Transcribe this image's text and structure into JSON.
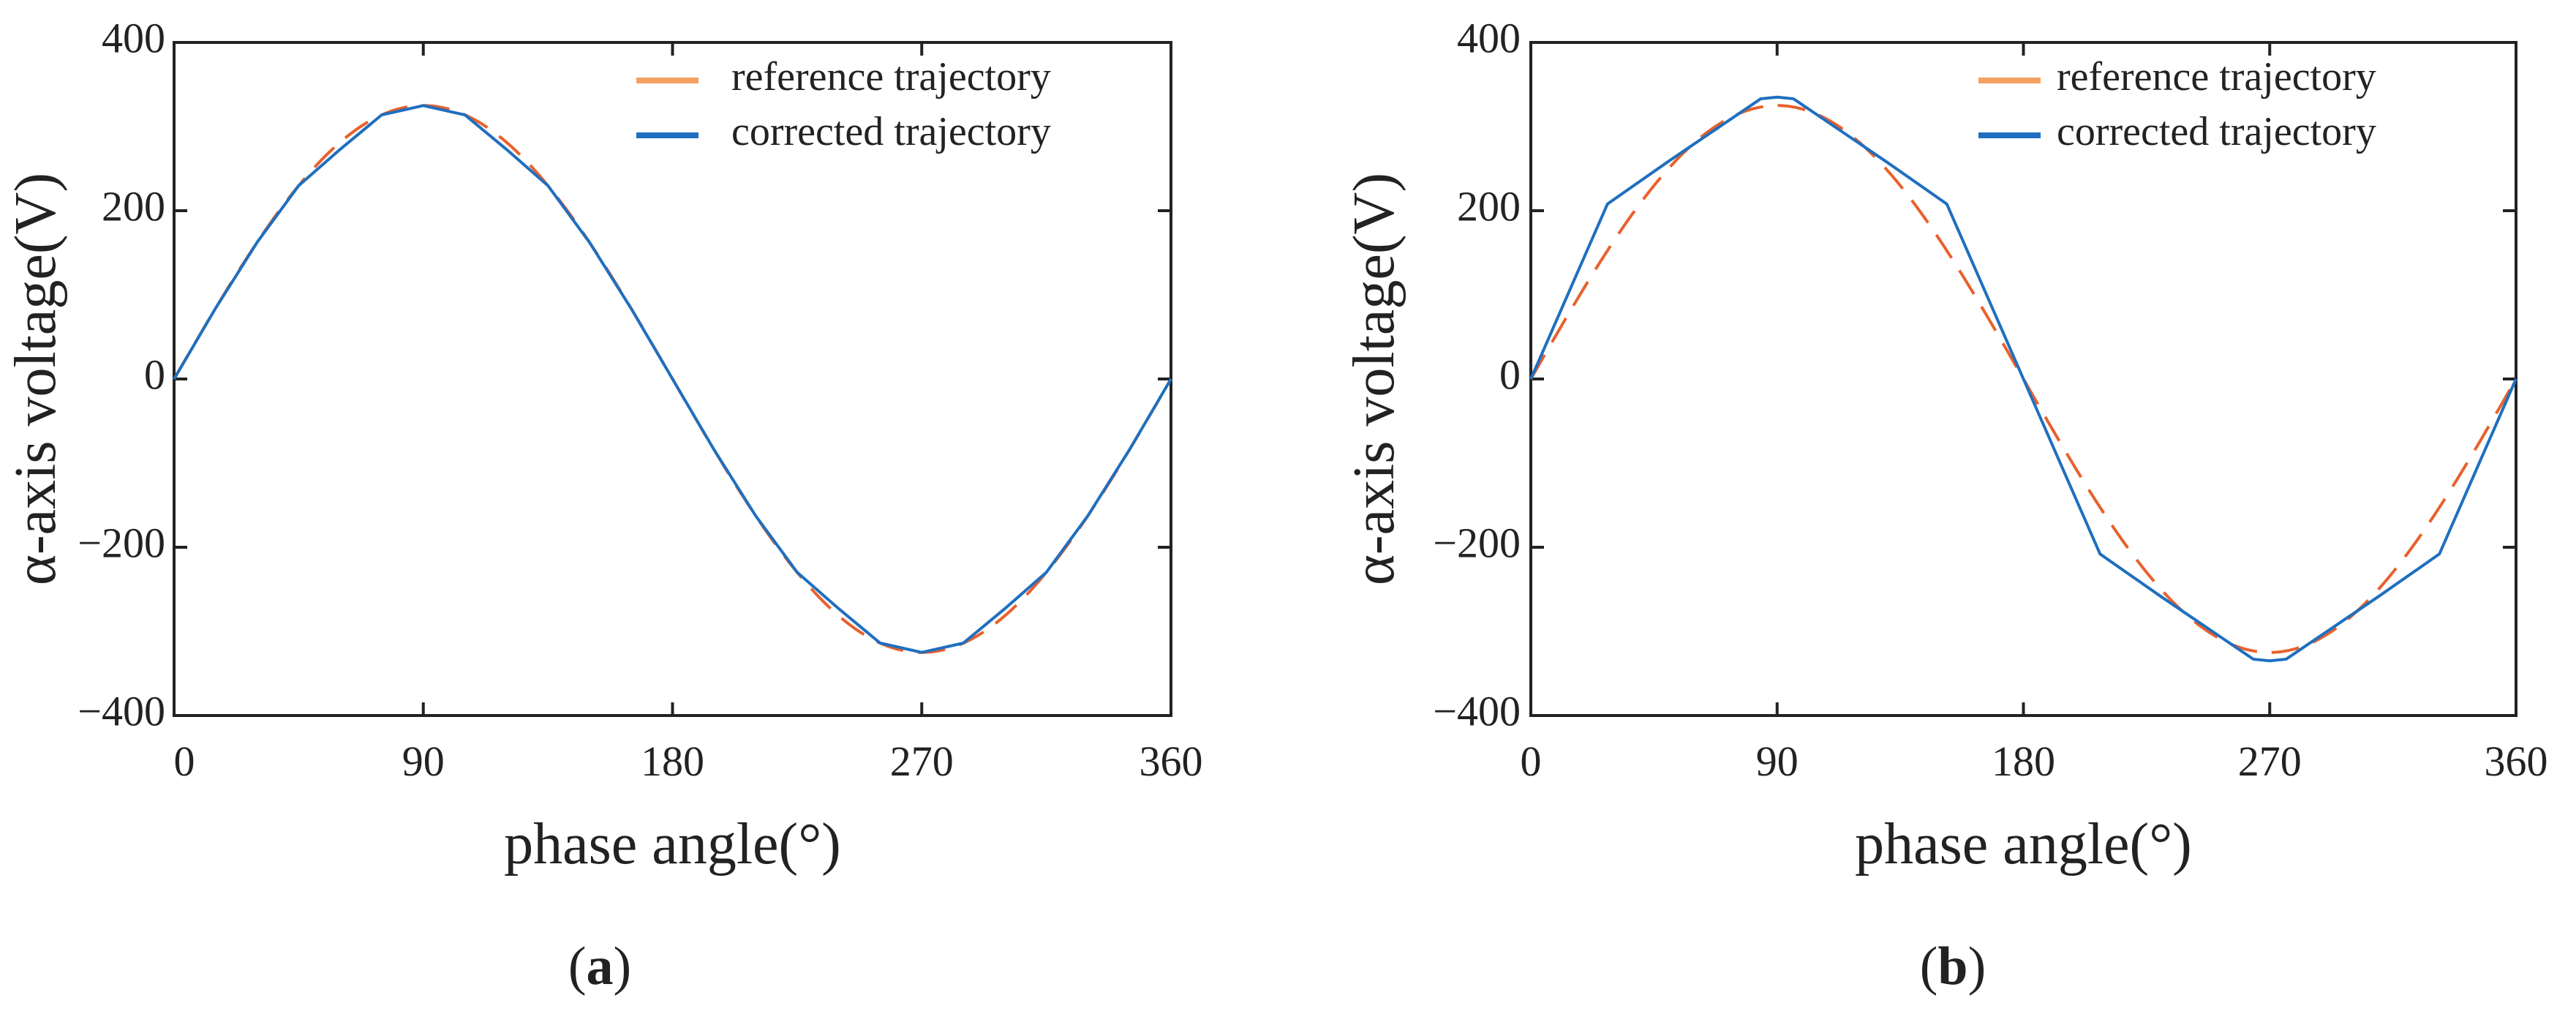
{
  "colors": {
    "reference": "#E8612C",
    "reference_legend": "#F4A060",
    "corrected": "#1F6FBF",
    "axis": "#222222"
  },
  "chart_data": [
    {
      "type": "line",
      "panel": "(a)",
      "caption_letter": "a",
      "xlabel": "phase angle(°)",
      "ylabel": "α-axis voltage(V)",
      "xlim": [
        0,
        360
      ],
      "ylim": [
        -400,
        400
      ],
      "xticks": [
        0,
        90,
        180,
        270,
        360
      ],
      "yticks": [
        -400,
        -200,
        0,
        200,
        400
      ],
      "xtick_labels": [
        "0",
        "90",
        "180",
        "270",
        "360"
      ],
      "ytick_labels": [
        "−400",
        "−200",
        "0",
        "200",
        "400"
      ],
      "legend_position": "top-right",
      "series": [
        {
          "name": "reference trajectory",
          "style": "dashed",
          "amplitude": 325,
          "x": [
            0,
            15,
            30,
            45,
            60,
            75,
            90,
            105,
            120,
            135,
            150,
            165,
            180,
            195,
            210,
            225,
            240,
            255,
            270,
            285,
            300,
            315,
            330,
            345,
            360
          ],
          "y": [
            0,
            84.1,
            162.5,
            229.8,
            281.5,
            313.9,
            325,
            313.9,
            281.5,
            229.8,
            162.5,
            84.1,
            0,
            -84.1,
            -162.5,
            -229.8,
            -281.5,
            -313.9,
            -325,
            -313.9,
            -281.5,
            -229.8,
            -162.5,
            -84.1,
            0
          ]
        },
        {
          "name": "corrected trajectory",
          "style": "solid",
          "x": [
            0,
            15,
            30,
            45,
            60,
            75,
            90,
            105,
            120,
            135,
            150,
            165,
            180,
            195,
            210,
            225,
            240,
            255,
            270,
            285,
            300,
            315,
            330,
            345,
            360
          ],
          "y": [
            0,
            84.1,
            162.5,
            229.8,
            273,
            313.9,
            325,
            313.9,
            273,
            229.8,
            162.5,
            84.1,
            0,
            -84.1,
            -162.5,
            -229.8,
            -273,
            -313.9,
            -325,
            -313.9,
            -273,
            -229.8,
            -162.5,
            -84.1,
            0
          ]
        }
      ]
    },
    {
      "type": "line",
      "panel": "(b)",
      "caption_letter": "b",
      "xlabel": "phase angle(°)",
      "ylabel": "α-axis voltage(V)",
      "xlim": [
        0,
        360
      ],
      "ylim": [
        -400,
        400
      ],
      "xticks": [
        0,
        90,
        180,
        270,
        360
      ],
      "yticks": [
        -400,
        -200,
        0,
        200,
        400
      ],
      "xtick_labels": [
        "0",
        "90",
        "180",
        "270",
        "360"
      ],
      "ytick_labels": [
        "−400",
        "−200",
        "0",
        "200",
        "400"
      ],
      "legend_position": "top-right",
      "series": [
        {
          "name": "reference trajectory",
          "style": "dashed",
          "amplitude": 325,
          "x": [
            0,
            15,
            30,
            45,
            60,
            75,
            90,
            105,
            120,
            135,
            150,
            165,
            180,
            195,
            210,
            225,
            240,
            255,
            270,
            285,
            300,
            315,
            330,
            345,
            360
          ],
          "y": [
            0,
            84.1,
            162.5,
            229.8,
            281.5,
            313.9,
            325,
            313.9,
            281.5,
            229.8,
            162.5,
            84.1,
            0,
            -84.1,
            -162.5,
            -229.8,
            -281.5,
            -313.9,
            -325,
            -313.9,
            -281.5,
            -229.8,
            -162.5,
            -84.1,
            0
          ]
        },
        {
          "name": "corrected trajectory",
          "style": "solid",
          "x": [
            0,
            28,
            50,
            84,
            90,
            96,
            130,
            152,
            180,
            208,
            230,
            264,
            270,
            276,
            310,
            332,
            360
          ],
          "y": [
            0,
            208,
            258,
            333,
            335,
            333,
            258,
            208,
            0,
            -208,
            -258,
            -333,
            -335,
            -333,
            -258,
            -208,
            0
          ]
        }
      ]
    }
  ]
}
